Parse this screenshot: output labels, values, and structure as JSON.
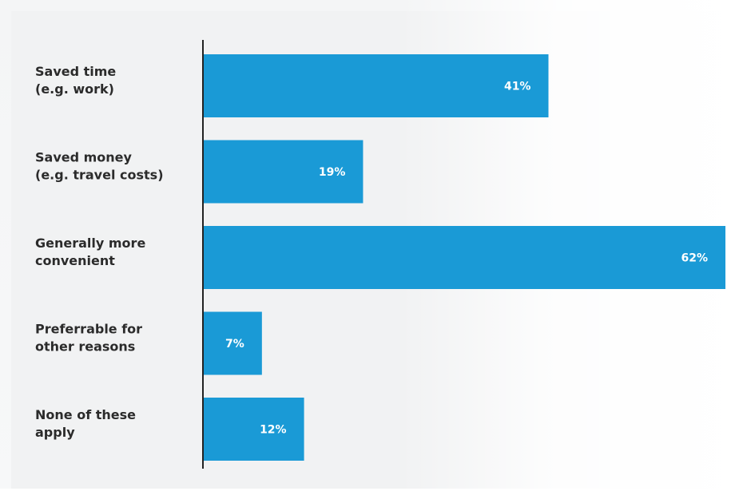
{
  "chart_data": {
    "type": "bar",
    "orientation": "horizontal",
    "title": "",
    "xlabel": "",
    "ylabel": "",
    "categories": [
      [
        "Saved time",
        "(e.g. work)"
      ],
      [
        "Saved money",
        "(e.g. travel costs)"
      ],
      [
        "Generally more",
        "convenient"
      ],
      [
        "Preferrable for",
        "other reasons"
      ],
      [
        "None of these",
        "apply"
      ]
    ],
    "values": [
      41,
      19,
      62,
      7,
      12
    ],
    "value_labels": [
      "41%",
      "19%",
      "62%",
      "7%",
      "12%"
    ],
    "unit": "%",
    "xlim": [
      0,
      62
    ],
    "grid": false,
    "legend": "none",
    "bar_color": "#1a9ad6",
    "axis_color": "#222222"
  }
}
